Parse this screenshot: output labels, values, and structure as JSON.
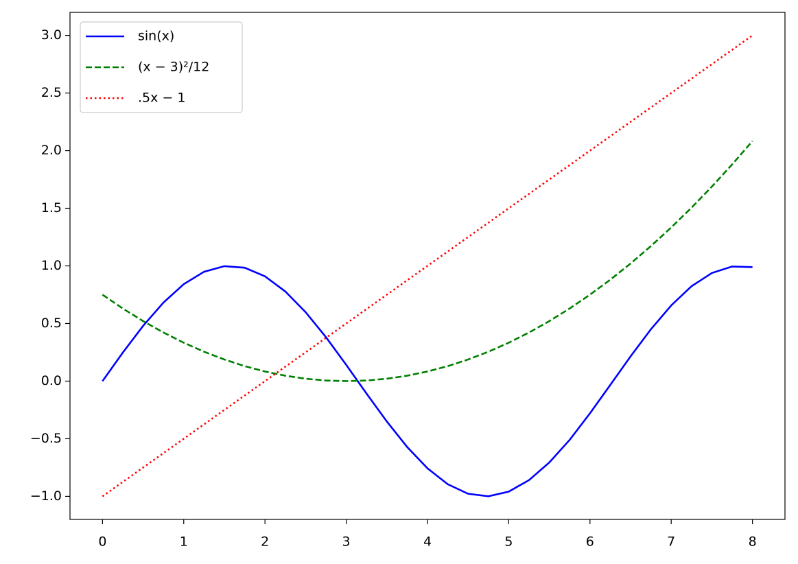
{
  "chart_data": {
    "type": "line",
    "x": [
      0,
      0.25,
      0.5,
      0.75,
      1,
      1.25,
      1.5,
      1.75,
      2,
      2.25,
      2.5,
      2.75,
      3,
      3.25,
      3.5,
      3.75,
      4,
      4.25,
      4.5,
      4.75,
      5,
      5.25,
      5.5,
      5.75,
      6,
      6.25,
      6.5,
      6.75,
      7,
      7.25,
      7.5,
      7.75,
      8
    ],
    "series": [
      {
        "name": "sin(x)",
        "color": "#0000ff",
        "dash": "solid",
        "values": [
          0,
          0.2474,
          0.4794,
          0.6816,
          0.8415,
          0.949,
          0.9975,
          0.984,
          0.9093,
          0.7781,
          0.5985,
          0.3817,
          0.1411,
          -0.1082,
          -0.3508,
          -0.5716,
          -0.7568,
          -0.895,
          -0.9775,
          -0.9993,
          -0.9589,
          -0.8589,
          -0.7055,
          -0.5099,
          -0.2794,
          -0.0332,
          0.2151,
          0.45,
          0.657,
          0.8231,
          0.938,
          0.9946,
          0.9894
        ]
      },
      {
        "name": "(x − 3)²/12",
        "color": "#008000",
        "dash": "dashed",
        "values": [
          0.75,
          0.6302,
          0.5208,
          0.4219,
          0.3333,
          0.2552,
          0.1875,
          0.1302,
          0.0833,
          0.0469,
          0.0208,
          0.0052,
          0,
          0.0052,
          0.0208,
          0.0469,
          0.0833,
          0.1302,
          0.1875,
          0.2552,
          0.3333,
          0.4219,
          0.5208,
          0.6302,
          0.75,
          0.8802,
          1.0208,
          1.1719,
          1.3333,
          1.5052,
          1.6875,
          1.8802,
          2.0833
        ]
      },
      {
        "name": ".5x − 1",
        "color": "#ff0000",
        "dash": "dotted",
        "values": [
          -1,
          -0.875,
          -0.75,
          -0.625,
          -0.5,
          -0.375,
          -0.25,
          -0.125,
          0,
          0.125,
          0.25,
          0.375,
          0.5,
          0.625,
          0.75,
          0.875,
          1,
          1.125,
          1.25,
          1.375,
          1.5,
          1.625,
          1.75,
          1.875,
          2,
          2.125,
          2.25,
          2.375,
          2.5,
          2.625,
          2.75,
          2.875,
          3
        ]
      }
    ],
    "xlim": [
      -0.4,
      8.4
    ],
    "xticks": [
      0,
      1,
      2,
      3,
      4,
      5,
      6,
      7,
      8
    ],
    "ylim": [
      -1.2,
      3.2
    ],
    "yticks": [
      {
        "value": -1,
        "label": "−1.0"
      },
      {
        "value": -0.5,
        "label": "−0.5"
      },
      {
        "value": 0,
        "label": "0.0"
      },
      0.5,
      {
        "value": 1,
        "label": "1.0"
      },
      1.5,
      {
        "value": 2,
        "label": "2.0"
      },
      2.5,
      {
        "value": 3,
        "label": "3.0"
      }
    ],
    "grid": false,
    "legend": "upper left"
  }
}
